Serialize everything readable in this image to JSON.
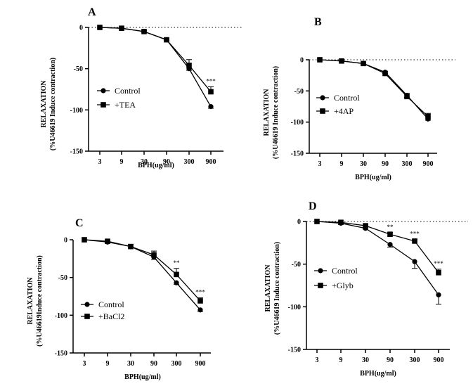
{
  "chart_data": [
    {
      "type": "line",
      "panel": "A",
      "x": [
        "3",
        "9",
        "30",
        "90",
        "300",
        "900"
      ],
      "xlabel": "BPH(ug/ml)",
      "ylabel": [
        "RELAXATION",
        "(%U46619 Induce contraction)"
      ],
      "yticks": [
        0,
        -50,
        -100,
        -150
      ],
      "ylim": [
        -150,
        0
      ],
      "zero_line": "dotted",
      "legend_position": "middle-left",
      "series": [
        {
          "name": "Control",
          "marker": "circle",
          "values": [
            0,
            -1,
            -5,
            -15,
            -50,
            -96
          ],
          "errors": [
            0,
            0,
            1,
            1,
            2,
            2
          ]
        },
        {
          "name": "+TEA",
          "marker": "square",
          "values": [
            0,
            -1,
            -5,
            -15,
            -46,
            -78
          ],
          "errors": [
            0,
            0,
            1,
            1,
            7,
            6
          ]
        }
      ],
      "annotations": [
        {
          "x": "900",
          "text": "***"
        }
      ]
    },
    {
      "type": "line",
      "panel": "B",
      "x": [
        "3",
        "9",
        "30",
        "90",
        "300",
        "900"
      ],
      "xlabel": "BPH(ug/ml)",
      "ylabel": [
        "RELAXATION",
        "(%U46619 Induce contraction)"
      ],
      "yticks": [
        0,
        -50,
        -100,
        -150
      ],
      "ylim": [
        -150,
        0
      ],
      "zero_line": "dotted",
      "legend_position": "middle-left",
      "series": [
        {
          "name": "Control",
          "marker": "circle",
          "values": [
            0,
            -2,
            -6,
            -20,
            -57,
            -95
          ],
          "errors": [
            0,
            0,
            1,
            2,
            3,
            2
          ]
        },
        {
          "name": "+4AP",
          "marker": "square",
          "values": [
            0,
            -2,
            -6,
            -22,
            -59,
            -91
          ],
          "errors": [
            0,
            0,
            1,
            3,
            5,
            5
          ]
        }
      ],
      "annotations": []
    },
    {
      "type": "line",
      "panel": "C",
      "x": [
        "3",
        "9",
        "30",
        "90",
        "300",
        "900"
      ],
      "xlabel": "BPH(ug/ml)",
      "ylabel": [
        "RELAXATION",
        "(%U46619Induce contraction)"
      ],
      "yticks": [
        0,
        -50,
        -100,
        -150
      ],
      "ylim": [
        -150,
        0
      ],
      "zero_line": "none",
      "legend_position": "bottom-left",
      "series": [
        {
          "name": "Control",
          "marker": "circle",
          "values": [
            0,
            -3,
            -9,
            -23,
            -57,
            -93
          ],
          "errors": [
            0,
            1,
            2,
            3,
            2,
            2
          ]
        },
        {
          "name": "+BaCl2",
          "marker": "square",
          "values": [
            0,
            -2,
            -9,
            -20,
            -46,
            -81
          ],
          "errors": [
            0,
            1,
            3,
            5,
            8,
            4
          ]
        }
      ],
      "annotations": [
        {
          "x": "300",
          "text": "**"
        },
        {
          "x": "900",
          "text": "***"
        }
      ]
    },
    {
      "type": "line",
      "panel": "D",
      "x": [
        "3",
        "9",
        "30",
        "90",
        "300",
        "900"
      ],
      "xlabel": "BPH(ug/ml)",
      "ylabel": [
        "RELAXATION",
        "(%U46619 Induce contraction)"
      ],
      "yticks": [
        0,
        -50,
        -100,
        -150
      ],
      "ylim": [
        -150,
        0
      ],
      "zero_line": "dotted",
      "legend_position": "middle-left",
      "series": [
        {
          "name": "Control",
          "marker": "circle",
          "values": [
            0,
            -2,
            -8,
            -27,
            -47,
            -86
          ],
          "errors": [
            0,
            0,
            1,
            3,
            8,
            11
          ]
        },
        {
          "name": "+Glyb",
          "marker": "square",
          "values": [
            0,
            -1,
            -5,
            -15,
            -23,
            -60
          ],
          "errors": [
            0,
            0,
            1,
            2,
            2,
            4
          ]
        }
      ],
      "annotations": [
        {
          "x": "90",
          "text": "**"
        },
        {
          "x": "300",
          "text": "***"
        },
        {
          "x": "900",
          "text": "***"
        }
      ]
    }
  ]
}
